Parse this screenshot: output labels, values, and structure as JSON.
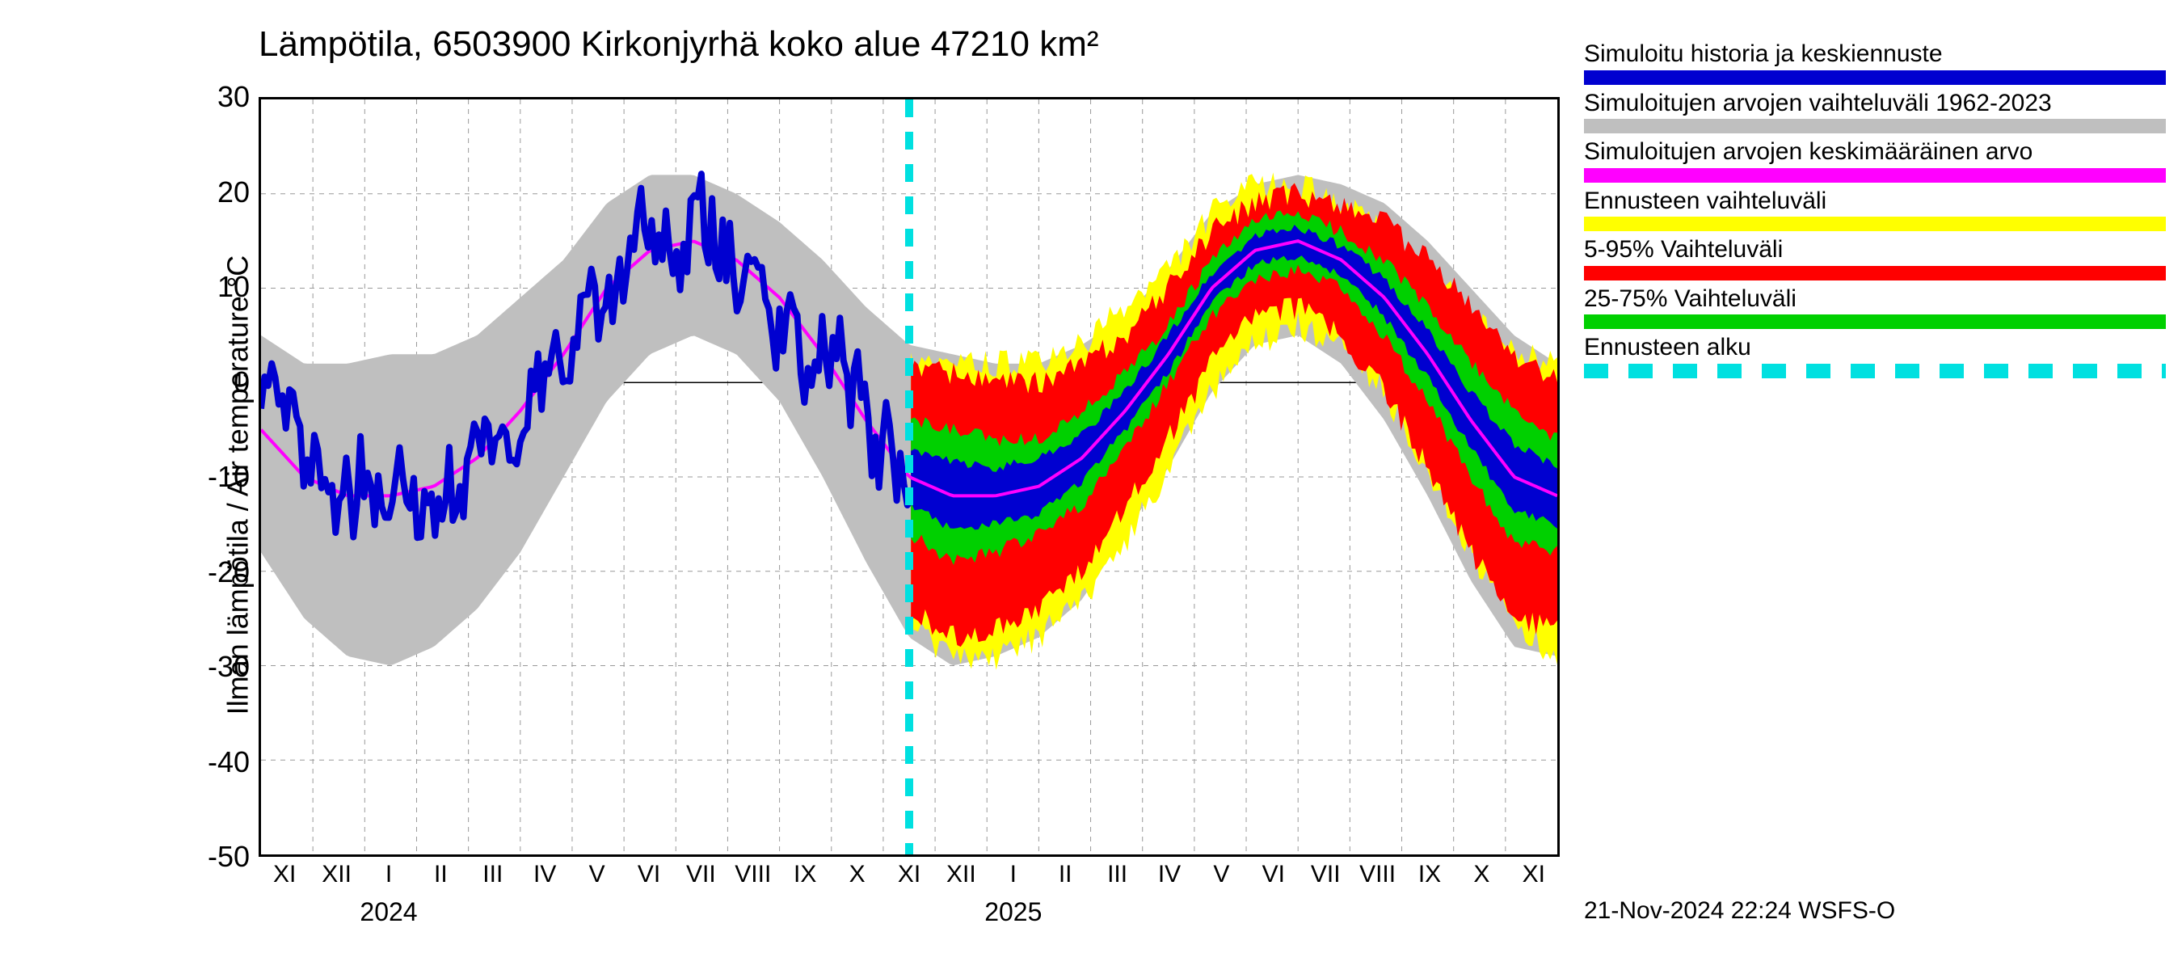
{
  "title": "Lämpötila, 6503900 Kirkonjyrhä koko alue 47210 km²",
  "ylabel": "Ilman lämpötila / Air temperature   °C",
  "timestamp": "21-Nov-2024 22:24 WSFS-O",
  "chart": {
    "type": "line_band",
    "background_color": "#ffffff",
    "grid_color": "#999999",
    "axis_color": "#000000",
    "title_fontsize": 44,
    "label_fontsize": 36,
    "tick_fontsize": 36,
    "ylim": [
      -50,
      30
    ],
    "yticks": [
      -50,
      -40,
      -30,
      -20,
      -10,
      0,
      10,
      20,
      30
    ],
    "x_months": [
      "XI",
      "XII",
      "I",
      "II",
      "III",
      "IV",
      "V",
      "VI",
      "VII",
      "VIII",
      "IX",
      "X",
      "XI",
      "XII",
      "I",
      "II",
      "III",
      "IV",
      "V",
      "VI",
      "VII",
      "VIII",
      "IX",
      "X",
      "XI"
    ],
    "year_labels": [
      {
        "text": "2024",
        "month_index": 2
      },
      {
        "text": "2025",
        "month_index": 14
      }
    ],
    "n_months": 25,
    "forecast_start_month_index": 12.5,
    "colors": {
      "simulated_history_forecast": "#0000d0",
      "simulated_range_historical": "#bfbfbf",
      "simulated_mean": "#ff00ff",
      "forecast_full_range": "#ffff00",
      "forecast_5_95": "#ff0000",
      "forecast_25_75": "#00d000",
      "forecast_start_line": "#00e0e0"
    },
    "line_widths": {
      "simulated_history_forecast": 2.5,
      "simulated_mean": 4,
      "forecast_start_line": 10
    },
    "seasonal_mean": [
      -5,
      -10,
      -12,
      -12,
      -11,
      -8,
      -3,
      3,
      10,
      14,
      15,
      13,
      9,
      3,
      -4,
      -10,
      -12,
      -12,
      -11,
      -8,
      -3,
      3,
      10,
      14,
      15,
      13,
      9,
      3,
      -4,
      -10,
      -12
    ],
    "history_noise_seed": 37,
    "history_noise_amplitude": 9,
    "band_grey_half": [
      10,
      12,
      14,
      15,
      14,
      13,
      12,
      10,
      9,
      8,
      7,
      7,
      8,
      10,
      12,
      14,
      15,
      14,
      13,
      12,
      10,
      9,
      8,
      7,
      7,
      8,
      10,
      12,
      14,
      15,
      14
    ],
    "band_yellow_half": [
      11,
      13,
      14,
      14,
      13,
      12,
      11,
      9,
      8,
      7,
      6,
      6,
      7,
      9,
      11,
      13,
      14,
      14,
      13,
      12,
      11,
      9,
      8,
      7,
      6,
      6,
      7,
      9,
      11,
      13,
      14
    ],
    "band_red_half": [
      8,
      10,
      12,
      13,
      12,
      11,
      10,
      8,
      7,
      6,
      5,
      5,
      6,
      8,
      10,
      12,
      13,
      12,
      11,
      10,
      8,
      7,
      6,
      5,
      5,
      6,
      8,
      10,
      12,
      13,
      12
    ],
    "band_green_half": [
      4,
      5,
      6,
      7,
      6,
      5,
      5,
      4,
      3,
      3,
      3,
      3,
      3,
      4,
      5,
      6,
      7,
      6,
      5,
      5,
      4,
      3,
      3,
      3,
      3,
      3,
      4,
      5,
      6,
      7,
      6
    ],
    "band_blue_half": [
      2,
      2.5,
      3,
      3.5,
      3,
      3,
      2.5,
      2,
      2,
      1.5,
      1.5,
      1.5,
      1.5,
      2,
      2.5,
      3,
      3.5,
      3,
      3,
      2.5,
      2,
      2,
      1.5,
      1.5,
      1.5,
      1.5,
      2,
      2.5,
      3,
      3.5,
      3
    ]
  },
  "legend": [
    {
      "label": "Simuloitu historia ja keskiennuste",
      "color_key": "simulated_history_forecast",
      "style": "solid"
    },
    {
      "label": "Simuloitujen arvojen vaihteluväli 1962-2023",
      "color_key": "simulated_range_historical",
      "style": "solid"
    },
    {
      "label": "Simuloitujen arvojen keskimääräinen arvo",
      "color_key": "simulated_mean",
      "style": "solid"
    },
    {
      "label": "Ennusteen vaihteluväli",
      "color_key": "forecast_full_range",
      "style": "solid"
    },
    {
      "label": "5-95% Vaihteluväli",
      "color_key": "forecast_5_95",
      "style": "solid"
    },
    {
      "label": "25-75% Vaihteluväli",
      "color_key": "forecast_25_75",
      "style": "solid"
    },
    {
      "label": "Ennusteen alku",
      "color_key": "forecast_start_line",
      "style": "dashed"
    }
  ]
}
